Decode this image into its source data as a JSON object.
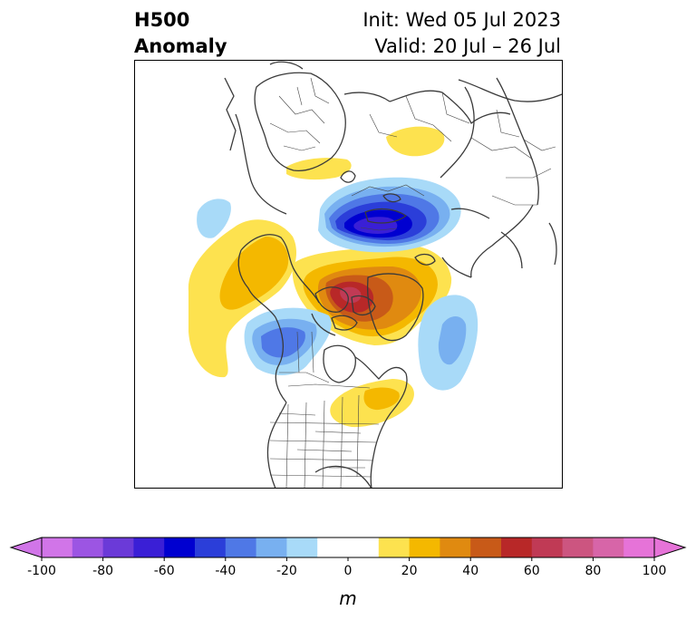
{
  "title": {
    "left_line1": "H500",
    "left_line2": "Anomaly",
    "right_line1": "Init: Wed 05 Jul 2023",
    "right_line2": "Valid: 20 Jul – 26 Jul"
  },
  "colorbar": {
    "unit_label": "m",
    "ticks": [
      -100,
      -80,
      -60,
      -40,
      -20,
      0,
      20,
      40,
      60,
      80,
      100
    ],
    "tick_labels": [
      "-100",
      "-80",
      "-60",
      "-40",
      "-20",
      "0",
      "20",
      "40",
      "60",
      "80",
      "100"
    ],
    "levels": [
      -100,
      -90,
      -80,
      -70,
      -60,
      -50,
      -40,
      -30,
      -20,
      -10,
      10,
      20,
      30,
      40,
      50,
      60,
      70,
      80,
      90,
      100
    ],
    "colors": [
      "#d175e8",
      "#9c55e3",
      "#6b3ad8",
      "#3a1fd6",
      "#0000d0",
      "#2b3ed9",
      "#4f78e6",
      "#78b0f0",
      "#a8daf8",
      "#ffffff",
      "#fde24f",
      "#f4b800",
      "#e08a10",
      "#c85a18",
      "#b82828",
      "#c03a55",
      "#cc5580",
      "#d765a8",
      "#e673d8"
    ],
    "extend": "both"
  },
  "map_data": {
    "projection": "polar stereographic, north-up over North America / Arctic",
    "field": "500 hPa height anomaly",
    "features": [
      {
        "type": "negative",
        "region": "Arctic / northern Siberia",
        "peak": -60
      },
      {
        "type": "negative",
        "region": "Gulf of Alaska / western Canada",
        "peak": -30
      },
      {
        "type": "negative",
        "region": "North Pacific (small)",
        "peak": -20
      },
      {
        "type": "negative",
        "region": "North Atlantic south of Greenland",
        "peak": -30
      },
      {
        "type": "positive",
        "region": "Canadian Arctic Archipelago / Greenland",
        "peak": 60
      },
      {
        "type": "positive",
        "region": "Scandinavia / northern Europe",
        "peak": 20
      },
      {
        "type": "positive",
        "region": "Eastern Siberia / Alaska",
        "peak": 30
      },
      {
        "type": "positive",
        "region": "Northeastern United States",
        "peak": 20
      },
      {
        "type": "positive",
        "region": "Central Asia (small)",
        "peak": 20
      },
      {
        "type": "positive",
        "region": "Eastern North Pacific",
        "peak": 20
      }
    ]
  }
}
